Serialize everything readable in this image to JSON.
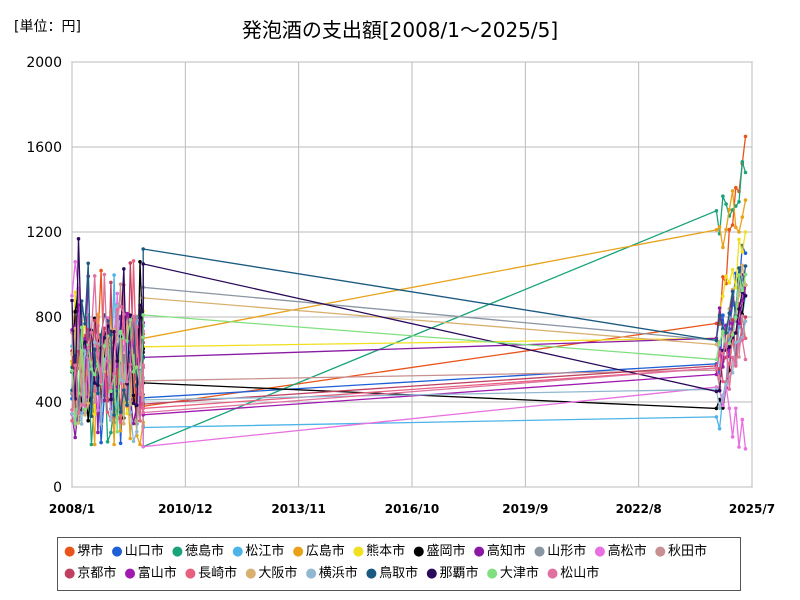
{
  "unit_label": "[単位：円]",
  "chart_data": {
    "type": "line",
    "title": "発泡酒の支出額[2008/1～2025/5]",
    "xlabel": "",
    "ylabel": "",
    "ylim": [
      0,
      2000
    ],
    "yticks": [
      0,
      400,
      800,
      1200,
      1600,
      2000
    ],
    "x_tick_labels": [
      "2008/1",
      "2010/12",
      "2013/11",
      "2016/10",
      "2019/9",
      "2022/8",
      "2025/7"
    ],
    "x_tick_dates": [
      "2008-01",
      "2010-12",
      "2013-11",
      "2016-10",
      "2019-09",
      "2022-08",
      "2025-07"
    ],
    "grid": true,
    "legend_position": "bottom",
    "series": [
      {
        "name": "堺市",
        "color": "#e8541a",
        "end2009": 380,
        "start2024": 770,
        "end2025": 1650
      },
      {
        "name": "山口市",
        "color": "#1f5fd6",
        "end2009": 420,
        "start2024": 580,
        "end2025": 1100
      },
      {
        "name": "徳島市",
        "color": "#1aa37a",
        "end2009": 190,
        "start2024": 1300,
        "end2025": 1480
      },
      {
        "name": "松江市",
        "color": "#4db4e8",
        "end2009": 280,
        "start2024": 330,
        "end2025": 900
      },
      {
        "name": "広島市",
        "color": "#e8a21a",
        "end2009": 700,
        "start2024": 1210,
        "end2025": 1350
      },
      {
        "name": "熊本市",
        "color": "#f0e020",
        "end2009": 660,
        "start2024": 700,
        "end2025": 1200
      },
      {
        "name": "盛岡市",
        "color": "#000000",
        "end2009": 490,
        "start2024": 370,
        "end2025": 950
      },
      {
        "name": "高知市",
        "color": "#8a1aa3",
        "end2009": 610,
        "start2024": 700,
        "end2025": 900
      },
      {
        "name": "山形市",
        "color": "#8a96a3",
        "end2009": 940,
        "start2024": 690,
        "end2025": 1000
      },
      {
        "name": "高松市",
        "color": "#e870e0",
        "end2009": 190,
        "start2024": 470,
        "end2025": 180
      },
      {
        "name": "秋田市",
        "color": "#c89090",
        "end2009": 500,
        "start2024": 550,
        "end2025": 700
      },
      {
        "name": "京都市",
        "color": "#c04060",
        "end2009": 390,
        "start2024": 570,
        "end2025": 800
      },
      {
        "name": "富山市",
        "color": "#a01ab0",
        "end2009": 340,
        "start2024": 530,
        "end2025": 950
      },
      {
        "name": "長崎市",
        "color": "#e86080",
        "end2009": 370,
        "start2024": 560,
        "end2025": 700
      },
      {
        "name": "大阪市",
        "color": "#d8b070",
        "end2009": 890,
        "start2024": 670,
        "end2025": 950
      },
      {
        "name": "横浜市",
        "color": "#90b8d0",
        "end2009": 410,
        "start2024": 460,
        "end2025": 780
      },
      {
        "name": "鳥取市",
        "color": "#1a5a80",
        "end2009": 1120,
        "start2024": 690,
        "end2025": 1040
      },
      {
        "name": "那覇市",
        "color": "#2a0a5a",
        "end2009": 1050,
        "start2024": 450,
        "end2025": 900
      },
      {
        "name": "大津市",
        "color": "#80e080",
        "end2009": 810,
        "start2024": 600,
        "end2025": 1000
      },
      {
        "name": "松山市",
        "color": "#e070a0",
        "end2009": 350,
        "start2024": 560,
        "end2025": 600
      }
    ]
  }
}
